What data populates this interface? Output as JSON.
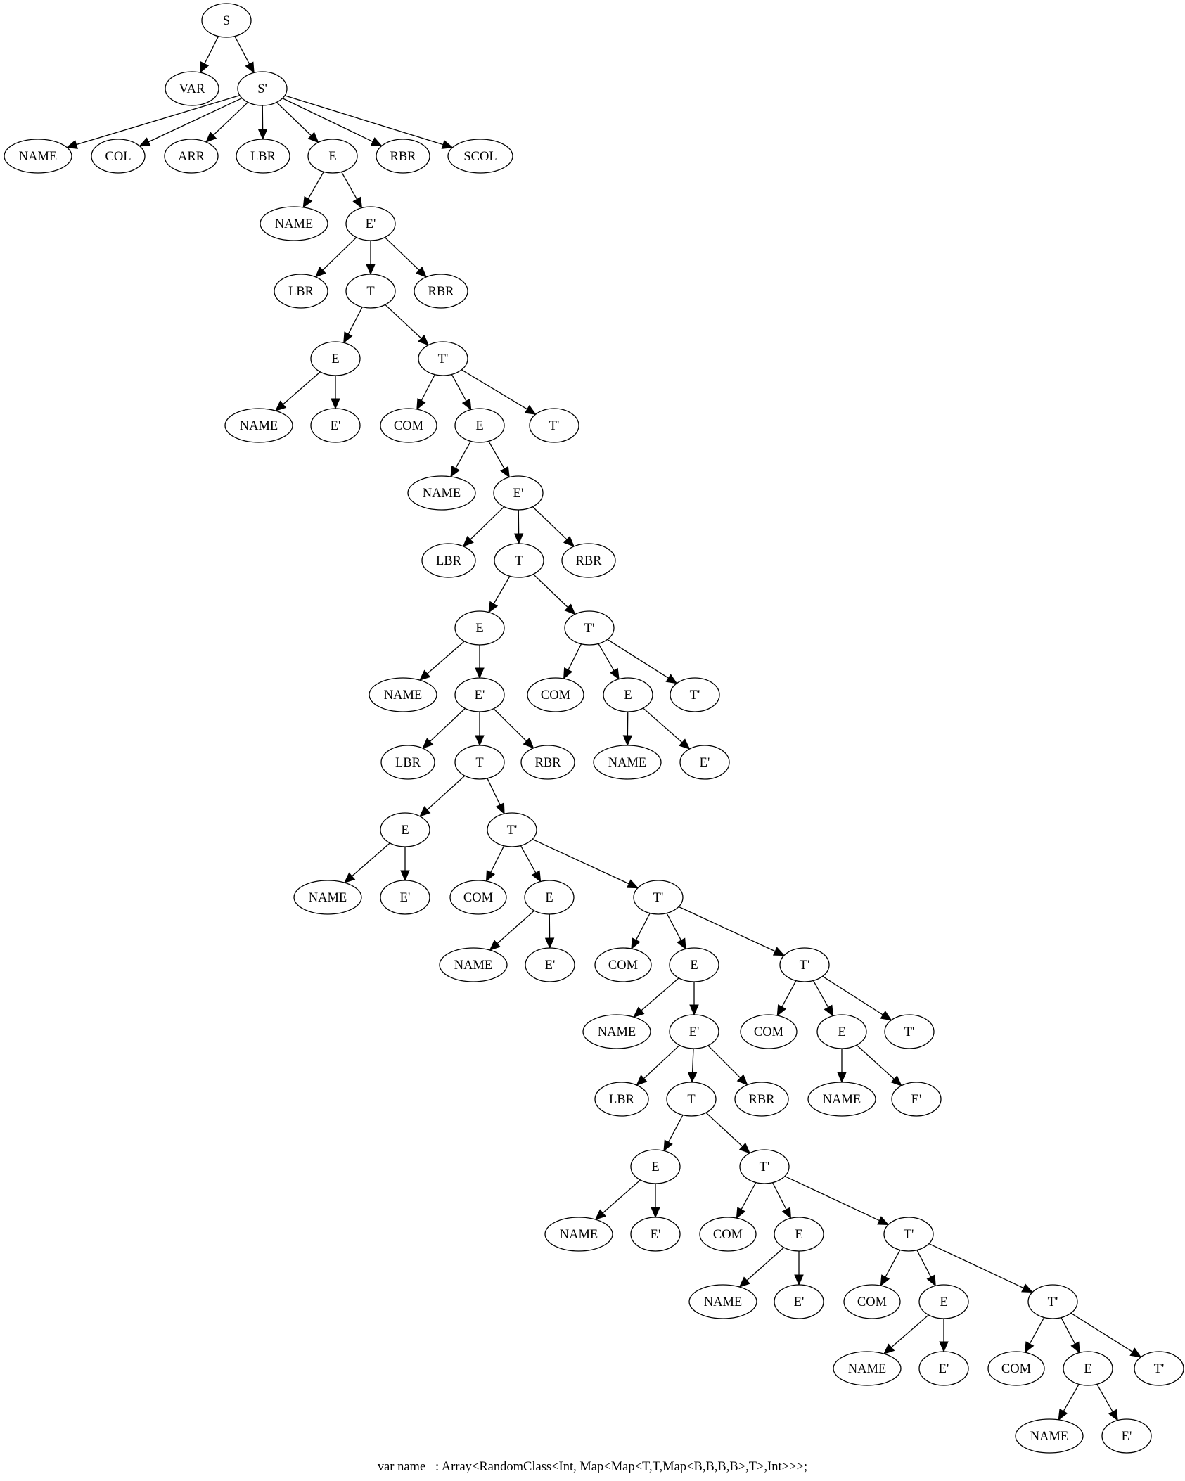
{
  "diagram": {
    "type": "parse-tree",
    "caption": "var name   : Array<RandomClass<Int, Map<Map<T,T,Map<B,B,B,B>,T>,Int>>>;",
    "nodes": [
      {
        "id": "n0",
        "label": "S"
      },
      {
        "id": "n1",
        "label": "VAR"
      },
      {
        "id": "n2",
        "label": "S'"
      },
      {
        "id": "n3",
        "label": "NAME"
      },
      {
        "id": "n4",
        "label": "COL"
      },
      {
        "id": "n5",
        "label": "ARR"
      },
      {
        "id": "n6",
        "label": "LBR"
      },
      {
        "id": "n7",
        "label": "E"
      },
      {
        "id": "n8",
        "label": "RBR"
      },
      {
        "id": "n9",
        "label": "SCOL"
      },
      {
        "id": "n10",
        "label": "NAME"
      },
      {
        "id": "n11",
        "label": "E'"
      },
      {
        "id": "n12",
        "label": "LBR"
      },
      {
        "id": "n13",
        "label": "T"
      },
      {
        "id": "n14",
        "label": "RBR"
      },
      {
        "id": "n15",
        "label": "E"
      },
      {
        "id": "n16",
        "label": "T'"
      },
      {
        "id": "n17",
        "label": "NAME"
      },
      {
        "id": "n18",
        "label": "E'"
      },
      {
        "id": "n19",
        "label": "COM"
      },
      {
        "id": "n20",
        "label": "E"
      },
      {
        "id": "n21",
        "label": "T'"
      },
      {
        "id": "n22",
        "label": "NAME"
      },
      {
        "id": "n23",
        "label": "E'"
      },
      {
        "id": "n24",
        "label": "LBR"
      },
      {
        "id": "n25",
        "label": "T"
      },
      {
        "id": "n26",
        "label": "RBR"
      },
      {
        "id": "n27",
        "label": "E"
      },
      {
        "id": "n28",
        "label": "T'"
      },
      {
        "id": "n29",
        "label": "NAME"
      },
      {
        "id": "n30",
        "label": "E'"
      },
      {
        "id": "n31",
        "label": "COM"
      },
      {
        "id": "n32",
        "label": "E"
      },
      {
        "id": "n33",
        "label": "T'"
      },
      {
        "id": "n34",
        "label": "LBR"
      },
      {
        "id": "n35",
        "label": "T"
      },
      {
        "id": "n36",
        "label": "RBR"
      },
      {
        "id": "n37",
        "label": "NAME"
      },
      {
        "id": "n38",
        "label": "E'"
      },
      {
        "id": "n39",
        "label": "E"
      },
      {
        "id": "n40",
        "label": "T'"
      },
      {
        "id": "n41",
        "label": "NAME"
      },
      {
        "id": "n42",
        "label": "E'"
      },
      {
        "id": "n43",
        "label": "COM"
      },
      {
        "id": "n44",
        "label": "E"
      },
      {
        "id": "n45",
        "label": "T'"
      },
      {
        "id": "n46",
        "label": "NAME"
      },
      {
        "id": "n47",
        "label": "E'"
      },
      {
        "id": "n48",
        "label": "COM"
      },
      {
        "id": "n49",
        "label": "E"
      },
      {
        "id": "n50",
        "label": "T'"
      },
      {
        "id": "n51",
        "label": "NAME"
      },
      {
        "id": "n52",
        "label": "E'"
      },
      {
        "id": "n53",
        "label": "COM"
      },
      {
        "id": "n54",
        "label": "E"
      },
      {
        "id": "n55",
        "label": "T'"
      },
      {
        "id": "n56",
        "label": "LBR"
      },
      {
        "id": "n57",
        "label": "T"
      },
      {
        "id": "n58",
        "label": "RBR"
      },
      {
        "id": "n59",
        "label": "NAME"
      },
      {
        "id": "n60",
        "label": "E'"
      },
      {
        "id": "n61",
        "label": "E"
      },
      {
        "id": "n62",
        "label": "T'"
      },
      {
        "id": "n63",
        "label": "NAME"
      },
      {
        "id": "n64",
        "label": "E'"
      },
      {
        "id": "n65",
        "label": "COM"
      },
      {
        "id": "n66",
        "label": "E"
      },
      {
        "id": "n67",
        "label": "T'"
      },
      {
        "id": "n68",
        "label": "NAME"
      },
      {
        "id": "n69",
        "label": "E'"
      },
      {
        "id": "n70",
        "label": "COM"
      },
      {
        "id": "n71",
        "label": "E"
      },
      {
        "id": "n72",
        "label": "T'"
      },
      {
        "id": "n73",
        "label": "NAME"
      },
      {
        "id": "n74",
        "label": "E'"
      },
      {
        "id": "n75",
        "label": "COM"
      },
      {
        "id": "n76",
        "label": "E"
      },
      {
        "id": "n77",
        "label": "T'"
      },
      {
        "id": "n78",
        "label": "NAME"
      },
      {
        "id": "n79",
        "label": "E'"
      }
    ],
    "edges": [
      [
        "n0",
        "n1"
      ],
      [
        "n0",
        "n2"
      ],
      [
        "n2",
        "n3"
      ],
      [
        "n2",
        "n4"
      ],
      [
        "n2",
        "n5"
      ],
      [
        "n2",
        "n6"
      ],
      [
        "n2",
        "n7"
      ],
      [
        "n2",
        "n8"
      ],
      [
        "n2",
        "n9"
      ],
      [
        "n7",
        "n10"
      ],
      [
        "n7",
        "n11"
      ],
      [
        "n11",
        "n12"
      ],
      [
        "n11",
        "n13"
      ],
      [
        "n11",
        "n14"
      ],
      [
        "n13",
        "n15"
      ],
      [
        "n13",
        "n16"
      ],
      [
        "n15",
        "n17"
      ],
      [
        "n15",
        "n18"
      ],
      [
        "n16",
        "n19"
      ],
      [
        "n16",
        "n20"
      ],
      [
        "n16",
        "n21"
      ],
      [
        "n20",
        "n22"
      ],
      [
        "n20",
        "n23"
      ],
      [
        "n23",
        "n24"
      ],
      [
        "n23",
        "n25"
      ],
      [
        "n23",
        "n26"
      ],
      [
        "n25",
        "n27"
      ],
      [
        "n25",
        "n28"
      ],
      [
        "n27",
        "n29"
      ],
      [
        "n27",
        "n30"
      ],
      [
        "n28",
        "n31"
      ],
      [
        "n28",
        "n32"
      ],
      [
        "n28",
        "n33"
      ],
      [
        "n30",
        "n34"
      ],
      [
        "n30",
        "n35"
      ],
      [
        "n30",
        "n36"
      ],
      [
        "n32",
        "n37"
      ],
      [
        "n32",
        "n38"
      ],
      [
        "n35",
        "n39"
      ],
      [
        "n35",
        "n40"
      ],
      [
        "n39",
        "n41"
      ],
      [
        "n39",
        "n42"
      ],
      [
        "n40",
        "n43"
      ],
      [
        "n40",
        "n44"
      ],
      [
        "n40",
        "n45"
      ],
      [
        "n44",
        "n46"
      ],
      [
        "n44",
        "n47"
      ],
      [
        "n45",
        "n48"
      ],
      [
        "n45",
        "n49"
      ],
      [
        "n45",
        "n50"
      ],
      [
        "n49",
        "n51"
      ],
      [
        "n49",
        "n52"
      ],
      [
        "n50",
        "n53"
      ],
      [
        "n50",
        "n54"
      ],
      [
        "n50",
        "n55"
      ],
      [
        "n52",
        "n56"
      ],
      [
        "n52",
        "n57"
      ],
      [
        "n52",
        "n58"
      ],
      [
        "n54",
        "n59"
      ],
      [
        "n54",
        "n60"
      ],
      [
        "n57",
        "n61"
      ],
      [
        "n57",
        "n62"
      ],
      [
        "n61",
        "n63"
      ],
      [
        "n61",
        "n64"
      ],
      [
        "n62",
        "n65"
      ],
      [
        "n62",
        "n66"
      ],
      [
        "n62",
        "n67"
      ],
      [
        "n66",
        "n68"
      ],
      [
        "n66",
        "n69"
      ],
      [
        "n67",
        "n70"
      ],
      [
        "n67",
        "n71"
      ],
      [
        "n67",
        "n72"
      ],
      [
        "n71",
        "n73"
      ],
      [
        "n71",
        "n74"
      ],
      [
        "n72",
        "n75"
      ],
      [
        "n72",
        "n76"
      ],
      [
        "n72",
        "n77"
      ],
      [
        "n76",
        "n78"
      ],
      [
        "n76",
        "n79"
      ]
    ]
  }
}
